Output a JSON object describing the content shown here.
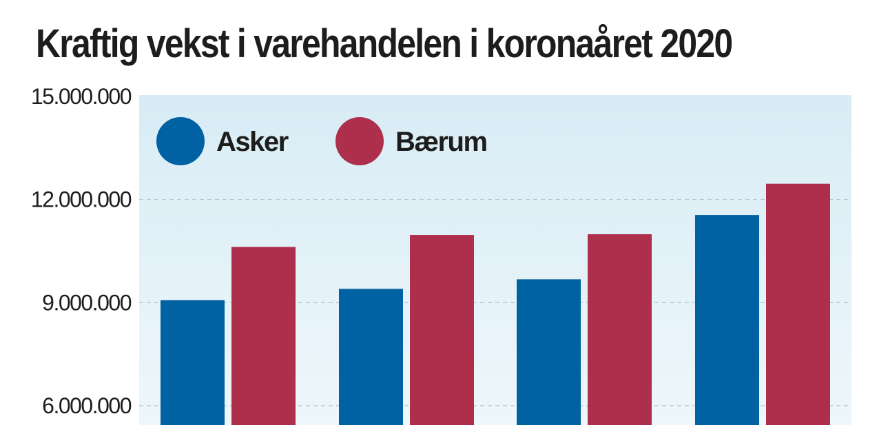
{
  "title": "Kraftig vekst i varehandelen i koronaåret 2020",
  "colors": {
    "asker": "#0061a3",
    "baerum": "#ae2f4b",
    "plot_bg_top": "#d8ecf5",
    "plot_bg_bottom": "#eef7fb",
    "grid": "#a9c4cc",
    "text": "#1d1d1b"
  },
  "chart_data": {
    "type": "bar",
    "title": "Kraftig vekst i varehandelen i koronaåret 2020",
    "categories": [
      "",
      "",
      "",
      ""
    ],
    "series": [
      {
        "name": "Asker",
        "color": "#0061a3",
        "values": [
          9070000,
          9400000,
          9680000,
          11550000
        ]
      },
      {
        "name": "Bærum",
        "color": "#ae2f4b",
        "values": [
          10620000,
          10970000,
          10990000,
          12460000
        ]
      }
    ],
    "ylim": [
      5500000,
      15000000
    ],
    "yticks": [
      {
        "value": 15000000,
        "label": "15.000.000"
      },
      {
        "value": 12000000,
        "label": "12.000.000"
      },
      {
        "value": 9000000,
        "label": "9.000.000"
      },
      {
        "value": 6000000,
        "label": "6.000.000"
      }
    ],
    "grid": true,
    "legend": "top-left"
  }
}
